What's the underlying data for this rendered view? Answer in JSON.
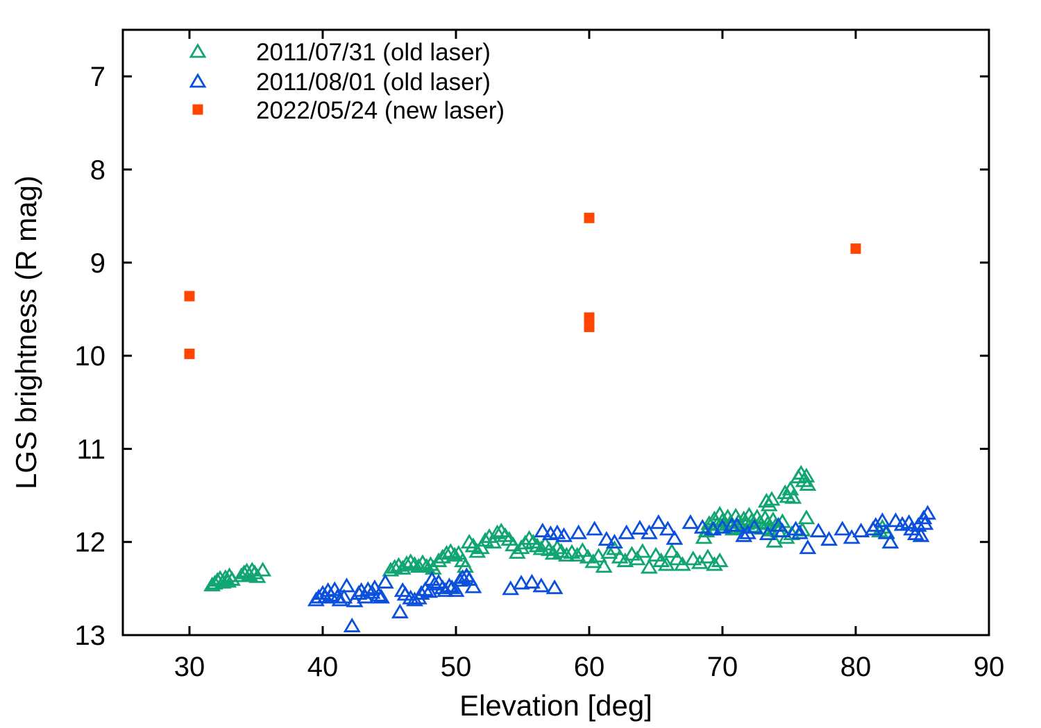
{
  "figure": {
    "background_color": "#ffffff",
    "axis_color": "#000000"
  },
  "chart_data": {
    "type": "scatter",
    "title": "",
    "xlabel": "Elevation [deg]",
    "ylabel": "LGS brightness (R mag)",
    "xlim": [
      25,
      90
    ],
    "ylim": [
      6.5,
      13
    ],
    "y_axis_inverted": true,
    "xticks": [
      30,
      40,
      50,
      60,
      70,
      80,
      90
    ],
    "yticks": [
      7,
      8,
      9,
      10,
      11,
      12,
      13
    ],
    "grid": false,
    "legend": {
      "position": "top-left-inside"
    },
    "series": [
      {
        "name": "2011/07/31 (old laser)",
        "marker": "open-triangle",
        "color": "#11a572",
        "points": [
          [
            31.7,
            12.46
          ],
          [
            31.9,
            12.44
          ],
          [
            32.1,
            12.41
          ],
          [
            32.3,
            12.39
          ],
          [
            32.5,
            12.43
          ],
          [
            32.7,
            12.38
          ],
          [
            32.9,
            12.42
          ],
          [
            33.0,
            12.36
          ],
          [
            33.2,
            12.4
          ],
          [
            33.9,
            12.36
          ],
          [
            34.1,
            12.33
          ],
          [
            34.3,
            12.31
          ],
          [
            34.5,
            12.35
          ],
          [
            34.7,
            12.3
          ],
          [
            34.9,
            12.33
          ],
          [
            35.1,
            12.37
          ],
          [
            35.5,
            12.3
          ],
          [
            45.1,
            12.3
          ],
          [
            45.4,
            12.27
          ],
          [
            45.7,
            12.25
          ],
          [
            46.0,
            12.28
          ],
          [
            46.3,
            12.23
          ],
          [
            46.6,
            12.21
          ],
          [
            46.9,
            12.24
          ],
          [
            47.2,
            12.26
          ],
          [
            47.5,
            12.22
          ],
          [
            47.8,
            12.26
          ],
          [
            48.1,
            12.24
          ],
          [
            48.3,
            12.28
          ],
          [
            48.7,
            12.2
          ],
          [
            49.0,
            12.16
          ],
          [
            49.3,
            12.12
          ],
          [
            49.6,
            12.1
          ],
          [
            49.9,
            12.14
          ],
          [
            50.2,
            12.12
          ],
          [
            50.5,
            12.2
          ],
          [
            50.7,
            12.26
          ],
          [
            51.0,
            12.0
          ],
          [
            51.3,
            12.04
          ],
          [
            51.6,
            12.1
          ],
          [
            51.9,
            12.06
          ],
          [
            52.2,
            11.98
          ],
          [
            52.5,
            11.94
          ],
          [
            52.8,
            12.0
          ],
          [
            53.1,
            11.9
          ],
          [
            53.4,
            11.88
          ],
          [
            53.7,
            11.93
          ],
          [
            54.0,
            11.97
          ],
          [
            54.3,
            12.03
          ],
          [
            54.6,
            12.11
          ],
          [
            54.9,
            12.06
          ],
          [
            55.2,
            12.01
          ],
          [
            55.5,
            11.96
          ],
          [
            55.8,
            12.0
          ],
          [
            56.1,
            12.04
          ],
          [
            56.4,
            12.07
          ],
          [
            56.7,
            12.02
          ],
          [
            57.0,
            12.08
          ],
          [
            57.3,
            12.12
          ],
          [
            57.6,
            12.06
          ],
          [
            57.9,
            12.1
          ],
          [
            58.3,
            12.14
          ],
          [
            58.7,
            12.11
          ],
          [
            59.1,
            12.14
          ],
          [
            59.5,
            12.09
          ],
          [
            59.9,
            12.16
          ],
          [
            60.3,
            12.21
          ],
          [
            60.7,
            12.15
          ],
          [
            61.1,
            12.26
          ],
          [
            61.5,
            12.11
          ],
          [
            61.9,
            12.07
          ],
          [
            62.3,
            12.16
          ],
          [
            62.7,
            12.2
          ],
          [
            63.2,
            12.13
          ],
          [
            63.6,
            12.18
          ],
          [
            64.0,
            12.1
          ],
          [
            64.5,
            12.27
          ],
          [
            65.0,
            12.14
          ],
          [
            65.4,
            12.2
          ],
          [
            65.8,
            12.24
          ],
          [
            66.2,
            12.1
          ],
          [
            66.6,
            12.18
          ],
          [
            67.0,
            12.24
          ],
          [
            67.8,
            12.18
          ],
          [
            68.3,
            12.22
          ],
          [
            68.9,
            12.16
          ],
          [
            69.4,
            12.24
          ],
          [
            69.8,
            12.2
          ],
          [
            68.6,
            11.95
          ],
          [
            68.8,
            11.88
          ],
          [
            69.0,
            11.8
          ],
          [
            69.2,
            11.86
          ],
          [
            69.4,
            11.75
          ],
          [
            69.6,
            11.81
          ],
          [
            69.8,
            11.7
          ],
          [
            70.0,
            11.77
          ],
          [
            70.2,
            11.84
          ],
          [
            70.4,
            11.73
          ],
          [
            70.6,
            11.79
          ],
          [
            70.8,
            11.86
          ],
          [
            71.0,
            11.72
          ],
          [
            71.2,
            11.78
          ],
          [
            71.4,
            11.84
          ],
          [
            71.6,
            11.75
          ],
          [
            71.8,
            11.8
          ],
          [
            72.0,
            11.71
          ],
          [
            72.2,
            11.77
          ],
          [
            72.4,
            11.83
          ],
          [
            72.6,
            11.73
          ],
          [
            72.8,
            11.79
          ],
          [
            73.0,
            11.85
          ],
          [
            73.2,
            11.74
          ],
          [
            73.4,
            11.8
          ],
          [
            73.6,
            11.87
          ],
          [
            73.8,
            11.76
          ],
          [
            74.0,
            11.82
          ],
          [
            74.2,
            11.88
          ],
          [
            74.5,
            11.78
          ],
          [
            73.3,
            11.56
          ],
          [
            73.5,
            11.6
          ],
          [
            73.7,
            11.54
          ],
          [
            74.7,
            11.47
          ],
          [
            74.9,
            11.51
          ],
          [
            75.1,
            11.43
          ],
          [
            75.3,
            11.52
          ],
          [
            75.7,
            11.3
          ],
          [
            75.9,
            11.26
          ],
          [
            76.1,
            11.34
          ],
          [
            76.3,
            11.29
          ],
          [
            76.4,
            11.38
          ],
          [
            73.9,
            11.99
          ],
          [
            74.8,
            11.95
          ],
          [
            75.2,
            11.91
          ],
          [
            76.0,
            11.87
          ],
          [
            76.3,
            11.74
          ],
          [
            81.8,
            11.88
          ],
          [
            82.0,
            11.84
          ],
          [
            82.3,
            11.89
          ]
        ]
      },
      {
        "name": "2011/08/01 (old laser)",
        "marker": "open-triangle",
        "color": "#0b50dc",
        "points": [
          [
            39.5,
            12.62
          ],
          [
            39.7,
            12.59
          ],
          [
            40.0,
            12.55
          ],
          [
            40.2,
            12.59
          ],
          [
            40.4,
            12.52
          ],
          [
            40.6,
            12.57
          ],
          [
            40.9,
            12.51
          ],
          [
            41.1,
            12.59
          ],
          [
            41.3,
            12.62
          ],
          [
            41.6,
            12.59
          ],
          [
            41.8,
            12.47
          ],
          [
            42.2,
            12.9
          ],
          [
            42.4,
            12.63
          ],
          [
            42.7,
            12.55
          ],
          [
            42.9,
            12.52
          ],
          [
            43.2,
            12.59
          ],
          [
            43.4,
            12.51
          ],
          [
            43.7,
            12.54
          ],
          [
            43.9,
            12.49
          ],
          [
            44.2,
            12.57
          ],
          [
            44.4,
            12.59
          ],
          [
            44.7,
            12.43
          ],
          [
            45.8,
            12.75
          ],
          [
            46.0,
            12.52
          ],
          [
            46.2,
            12.56
          ],
          [
            46.6,
            12.6
          ],
          [
            46.9,
            12.62
          ],
          [
            47.2,
            12.6
          ],
          [
            47.4,
            12.55
          ],
          [
            47.7,
            12.51
          ],
          [
            48.0,
            12.53
          ],
          [
            48.2,
            12.4
          ],
          [
            48.4,
            12.45
          ],
          [
            48.7,
            12.43
          ],
          [
            49.0,
            12.49
          ],
          [
            49.2,
            12.52
          ],
          [
            49.5,
            12.47
          ],
          [
            49.7,
            12.49
          ],
          [
            50.0,
            12.52
          ],
          [
            50.3,
            12.41
          ],
          [
            50.5,
            12.38
          ],
          [
            50.8,
            12.36
          ],
          [
            51.0,
            12.4
          ],
          [
            51.3,
            12.48
          ],
          [
            54.1,
            12.5
          ],
          [
            54.9,
            12.44
          ],
          [
            55.7,
            12.43
          ],
          [
            56.4,
            12.47
          ],
          [
            57.4,
            12.49
          ],
          [
            56.5,
            11.88
          ],
          [
            57.1,
            11.91
          ],
          [
            57.6,
            11.9
          ],
          [
            58.1,
            11.93
          ],
          [
            59.2,
            11.9
          ],
          [
            60.4,
            11.86
          ],
          [
            61.3,
            11.97
          ],
          [
            61.9,
            12.0
          ],
          [
            62.8,
            11.9
          ],
          [
            63.8,
            11.85
          ],
          [
            64.5,
            11.9
          ],
          [
            65.2,
            11.79
          ],
          [
            65.9,
            11.86
          ],
          [
            66.4,
            11.96
          ],
          [
            67.6,
            11.79
          ],
          [
            68.5,
            11.84
          ],
          [
            69.3,
            11.86
          ],
          [
            70.0,
            11.84
          ],
          [
            70.7,
            11.82
          ],
          [
            71.1,
            11.82
          ],
          [
            71.6,
            11.93
          ],
          [
            71.9,
            11.9
          ],
          [
            72.4,
            11.84
          ],
          [
            73.4,
            11.91
          ],
          [
            74.2,
            11.82
          ],
          [
            74.5,
            11.88
          ],
          [
            75.5,
            11.86
          ],
          [
            75.8,
            11.9
          ],
          [
            76.4,
            12.06
          ],
          [
            77.2,
            11.88
          ],
          [
            78.0,
            11.97
          ],
          [
            79.0,
            11.86
          ],
          [
            79.7,
            11.95
          ],
          [
            80.4,
            11.88
          ],
          [
            81.3,
            11.86
          ],
          [
            81.5,
            11.82
          ],
          [
            82.0,
            11.77
          ],
          [
            82.3,
            11.9
          ],
          [
            82.6,
            12.0
          ],
          [
            83.0,
            11.77
          ],
          [
            83.5,
            11.81
          ],
          [
            84.0,
            11.79
          ],
          [
            84.2,
            11.86
          ],
          [
            84.5,
            11.91
          ],
          [
            84.7,
            11.82
          ],
          [
            84.9,
            11.93
          ],
          [
            85.1,
            11.74
          ],
          [
            85.2,
            11.8
          ],
          [
            85.4,
            11.69
          ]
        ]
      },
      {
        "name": "2022/05/24 (new laser)",
        "marker": "filled-square",
        "color": "#ff4500",
        "points": [
          [
            30.0,
            9.36
          ],
          [
            30.0,
            9.98
          ],
          [
            60.0,
            8.52
          ],
          [
            60.0,
            9.59
          ],
          [
            60.0,
            9.69
          ],
          [
            80.0,
            8.85
          ]
        ]
      }
    ]
  }
}
